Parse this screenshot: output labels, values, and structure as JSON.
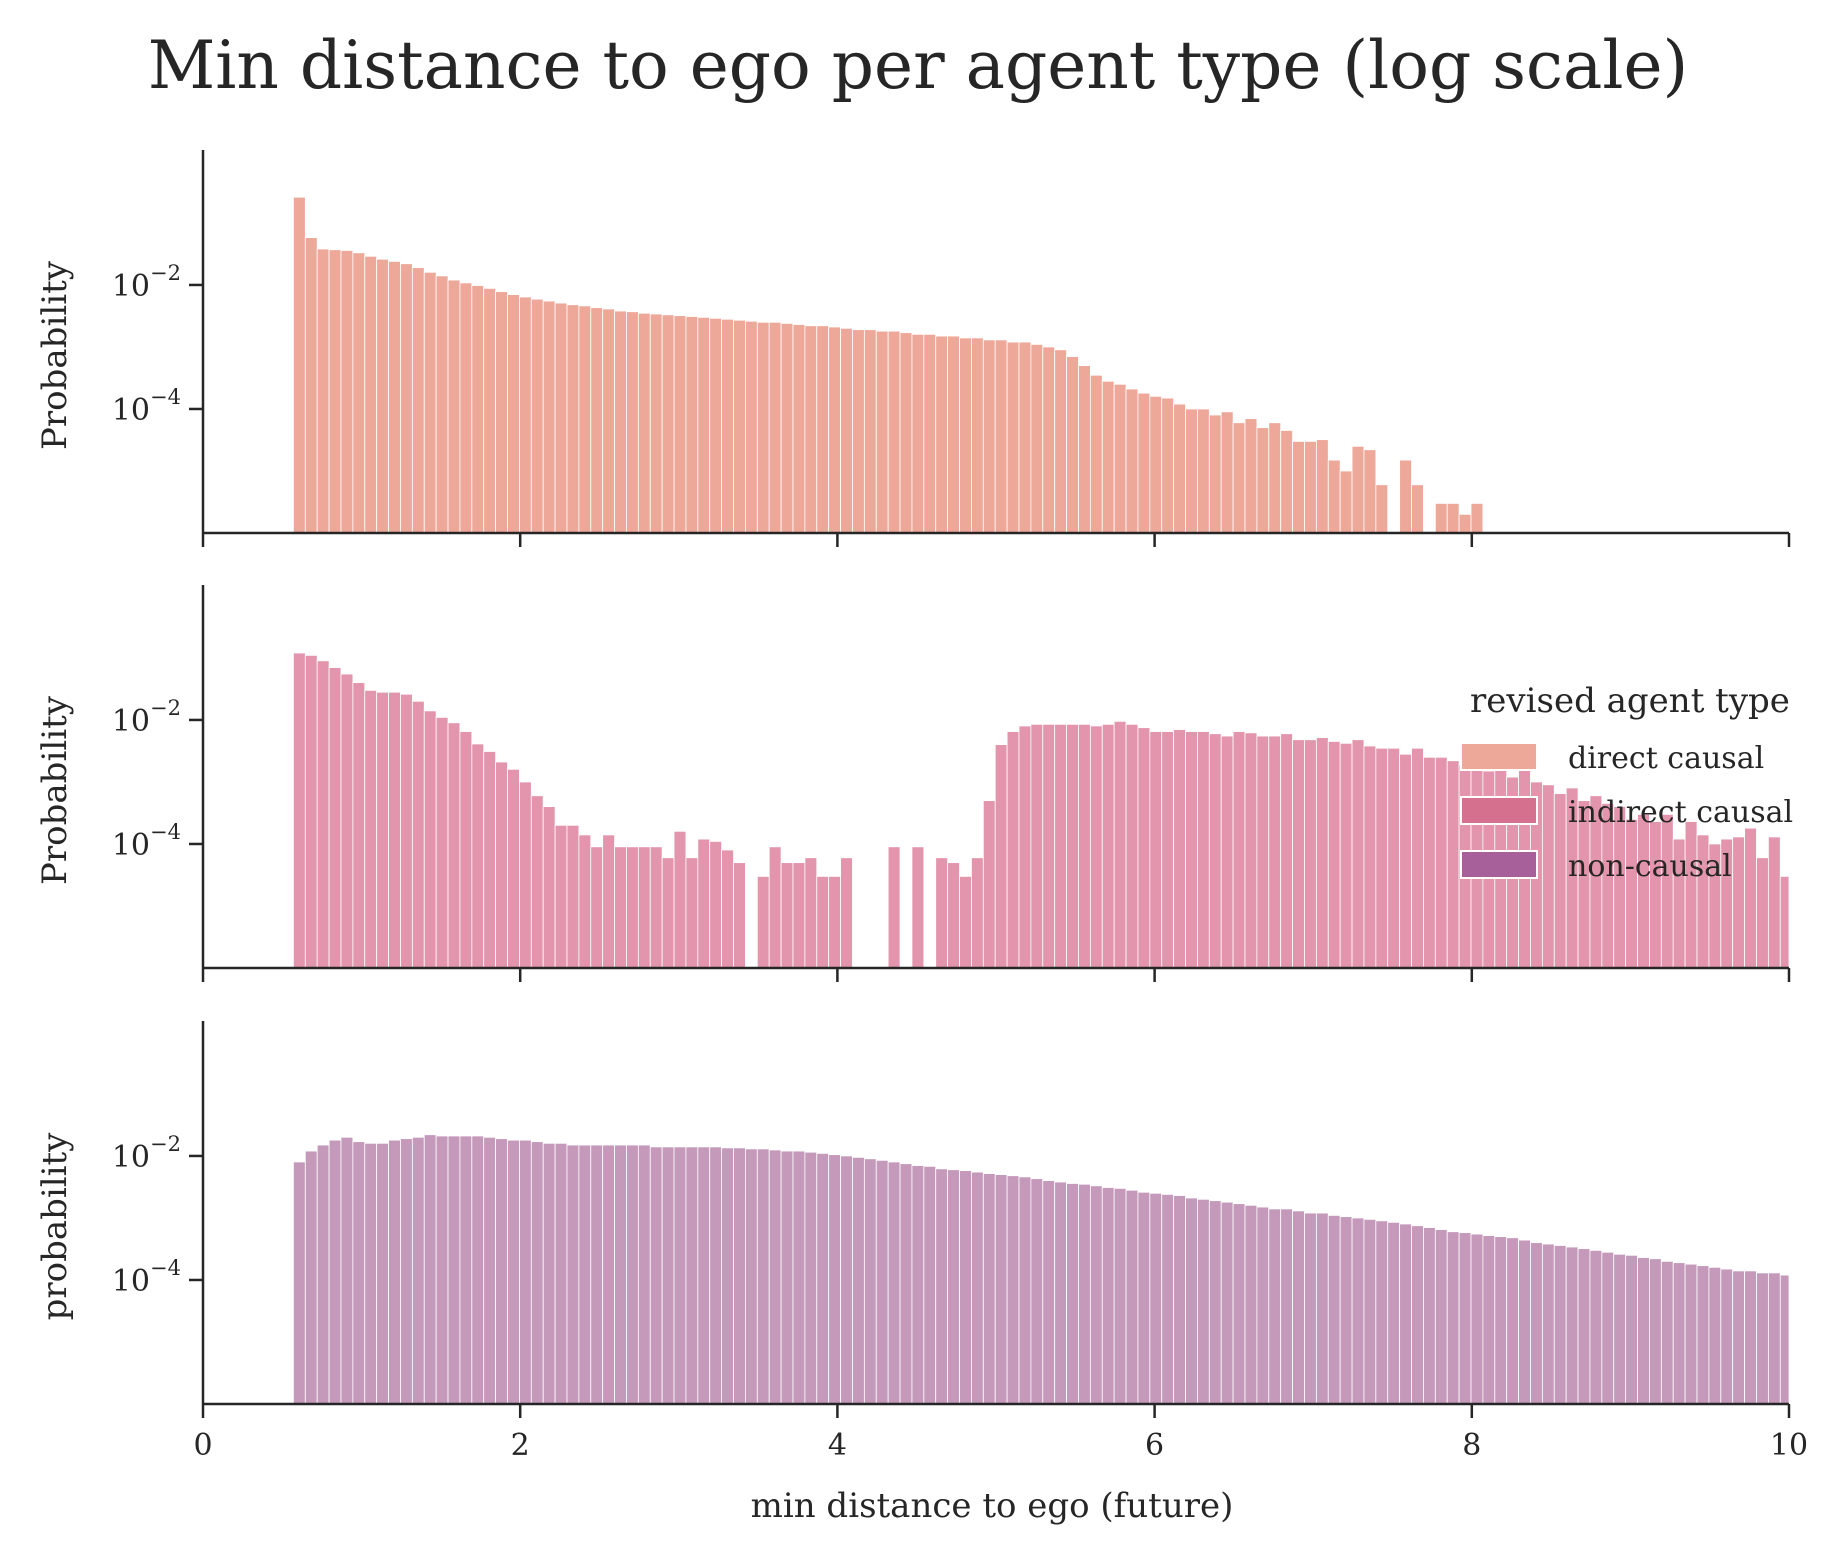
{
  "chart_data": [
    {
      "type": "bar",
      "title": "Min distance to ego per agent type (log scale)",
      "series_name": "direct causal",
      "ylabel": "Probability",
      "xlabel": "",
      "yscale": "log",
      "ylim": [
        1e-06,
        1.5
      ],
      "xlim": [
        0,
        10
      ],
      "bin_width": 0.075,
      "x_start": 0.57,
      "x_tick_labels": [],
      "y_ticks": [
        {
          "base": "10",
          "exp": "−2",
          "value": 0.01
        },
        {
          "base": "10",
          "exp": "−4",
          "value": 0.0001
        }
      ],
      "color": "#eea899",
      "values": [
        0.26,
        0.058,
        0.038,
        0.037,
        0.036,
        0.033,
        0.029,
        0.026,
        0.024,
        0.022,
        0.019,
        0.016,
        0.014,
        0.012,
        0.0108,
        0.0098,
        0.0088,
        0.0078,
        0.007,
        0.0064,
        0.0059,
        0.0055,
        0.0051,
        0.0048,
        0.0046,
        0.0043,
        0.0041,
        0.0038,
        0.0037,
        0.0035,
        0.0034,
        0.0033,
        0.0032,
        0.0031,
        0.003,
        0.0029,
        0.0028,
        0.0027,
        0.0026,
        0.0025,
        0.0025,
        0.0024,
        0.0023,
        0.0022,
        0.0022,
        0.0021,
        0.002,
        0.0019,
        0.0019,
        0.0018,
        0.0018,
        0.0017,
        0.0016,
        0.0016,
        0.0015,
        0.0015,
        0.0014,
        0.0014,
        0.0013,
        0.0013,
        0.0012,
        0.0012,
        0.0011,
        0.001,
        0.0009,
        0.0007,
        0.0005,
        0.00035,
        0.00028,
        0.00025,
        0.00021,
        0.00018,
        0.00016,
        0.00015,
        0.00012,
        0.0001,
        0.0001,
        8e-05,
        9e-05,
        6e-05,
        7e-05,
        5e-05,
        6e-05,
        4.5e-05,
        3e-05,
        3e-05,
        3.2e-05,
        1.5e-05,
        1e-05,
        2.5e-05,
        2.2e-05,
        6e-06,
        0,
        1.5e-05,
        6e-06,
        0,
        3e-06,
        3e-06,
        2e-06,
        3e-06
      ]
    },
    {
      "type": "bar",
      "series_name": "indirect causal",
      "ylabel": "Probability",
      "xlabel": "",
      "yscale": "log",
      "ylim": [
        1e-06,
        1.5
      ],
      "xlim": [
        0,
        10
      ],
      "bin_width": 0.075,
      "x_start": 0.57,
      "x_tick_labels": [],
      "y_ticks": [
        {
          "base": "10",
          "exp": "−2",
          "value": 0.01
        },
        {
          "base": "10",
          "exp": "−4",
          "value": 0.0001
        }
      ],
      "color": "#e295ac",
      "values": [
        0.12,
        0.11,
        0.09,
        0.07,
        0.055,
        0.04,
        0.03,
        0.028,
        0.028,
        0.026,
        0.02,
        0.014,
        0.011,
        0.009,
        0.0065,
        0.0041,
        0.0031,
        0.0021,
        0.0016,
        0.001,
        0.0006,
        0.0004,
        0.0002,
        0.0002,
        0.00014,
        9e-05,
        0.00014,
        9e-05,
        9e-05,
        9e-05,
        9e-05,
        6e-05,
        0.00016,
        6e-05,
        0.00012,
        0.00011,
        8e-05,
        5e-05,
        0,
        3e-05,
        9e-05,
        5e-05,
        5e-05,
        6e-05,
        3e-05,
        3e-05,
        6e-05,
        0,
        0,
        0,
        9e-05,
        0,
        9e-05,
        0,
        6e-05,
        5e-05,
        3e-05,
        6e-05,
        0.0005,
        0.004,
        0.0065,
        0.008,
        0.0085,
        0.0085,
        0.0085,
        0.0085,
        0.0085,
        0.008,
        0.0085,
        0.0095,
        0.0085,
        0.0075,
        0.0065,
        0.0065,
        0.007,
        0.0065,
        0.0065,
        0.006,
        0.0055,
        0.0065,
        0.0062,
        0.0055,
        0.0055,
        0.006,
        0.0048,
        0.0048,
        0.0052,
        0.0045,
        0.0042,
        0.0048,
        0.0038,
        0.0035,
        0.0035,
        0.0028,
        0.0035,
        0.0025,
        0.0025,
        0.0022,
        0.0019,
        0.002,
        0.0015,
        0.0016,
        0.0012,
        0.0018,
        0.001,
        0.0009,
        0.00065,
        0.0008,
        0.0005,
        0.0006,
        0.00045,
        0.0004,
        0.00025,
        0.0003,
        0.00023,
        0.0003,
        0.00012,
        0.00023,
        0.00014,
        0.0001,
        0.00012,
        0.00013,
        0.00018,
        6e-05,
        0.00013,
        3e-05,
        0.00015,
        5e-05,
        0.00018,
        6e-05
      ]
    },
    {
      "type": "bar",
      "series_name": "non-causal",
      "ylabel": "probability",
      "xlabel": "min distance to ego (future)",
      "yscale": "log",
      "ylim": [
        1e-06,
        1.5
      ],
      "xlim": [
        0,
        10
      ],
      "bin_width": 0.075,
      "x_start": 0.57,
      "x_tick_labels": [
        "0",
        "2",
        "4",
        "6",
        "8",
        "10"
      ],
      "y_ticks": [
        {
          "base": "10",
          "exp": "−2",
          "value": 0.01
        },
        {
          "base": "10",
          "exp": "−4",
          "value": 0.0001
        }
      ],
      "color": "#c499ba",
      "values": [
        0.008,
        0.012,
        0.015,
        0.018,
        0.02,
        0.017,
        0.016,
        0.016,
        0.018,
        0.019,
        0.02,
        0.022,
        0.021,
        0.021,
        0.021,
        0.021,
        0.02,
        0.019,
        0.018,
        0.018,
        0.017,
        0.016,
        0.016,
        0.015,
        0.015,
        0.015,
        0.015,
        0.015,
        0.015,
        0.015,
        0.014,
        0.014,
        0.014,
        0.014,
        0.014,
        0.014,
        0.0135,
        0.0135,
        0.013,
        0.013,
        0.0125,
        0.012,
        0.012,
        0.0115,
        0.011,
        0.0105,
        0.01,
        0.0095,
        0.009,
        0.0085,
        0.008,
        0.0075,
        0.007,
        0.0068,
        0.0062,
        0.006,
        0.0058,
        0.0055,
        0.0052,
        0.005,
        0.0048,
        0.0046,
        0.0043,
        0.004,
        0.0038,
        0.0036,
        0.0035,
        0.0033,
        0.0031,
        0.003,
        0.0028,
        0.0026,
        0.0025,
        0.0024,
        0.0023,
        0.0021,
        0.002,
        0.0019,
        0.0018,
        0.0017,
        0.0016,
        0.0015,
        0.0014,
        0.0014,
        0.0013,
        0.0012,
        0.0012,
        0.0011,
        0.00105,
        0.001,
        0.00095,
        0.0009,
        0.00085,
        0.0008,
        0.00075,
        0.0007,
        0.00065,
        0.0006,
        0.00058,
        0.00055,
        0.00052,
        0.0005,
        0.00048,
        0.00044,
        0.0004,
        0.00038,
        0.00036,
        0.00034,
        0.00032,
        0.0003,
        0.00028,
        0.00026,
        0.00025,
        0.00023,
        0.00022,
        0.0002,
        0.00019,
        0.00018,
        0.00017,
        0.00016,
        0.00015,
        0.00014,
        0.00014,
        0.00013,
        0.00013,
        0.00012,
        0.00012,
        0.00011,
        0.00011,
        0.0001,
        0.0001,
        0.0001,
        9.5e-05,
        9e-05,
        9e-05
      ]
    }
  ],
  "legend": {
    "title": "revised agent type",
    "placement": "right of middle panel",
    "items": [
      {
        "label": "direct causal",
        "color": "#eea899"
      },
      {
        "label": "indirect causal",
        "color": "#d6708f"
      },
      {
        "label": "non-causal",
        "color": "#a8609a"
      }
    ]
  }
}
